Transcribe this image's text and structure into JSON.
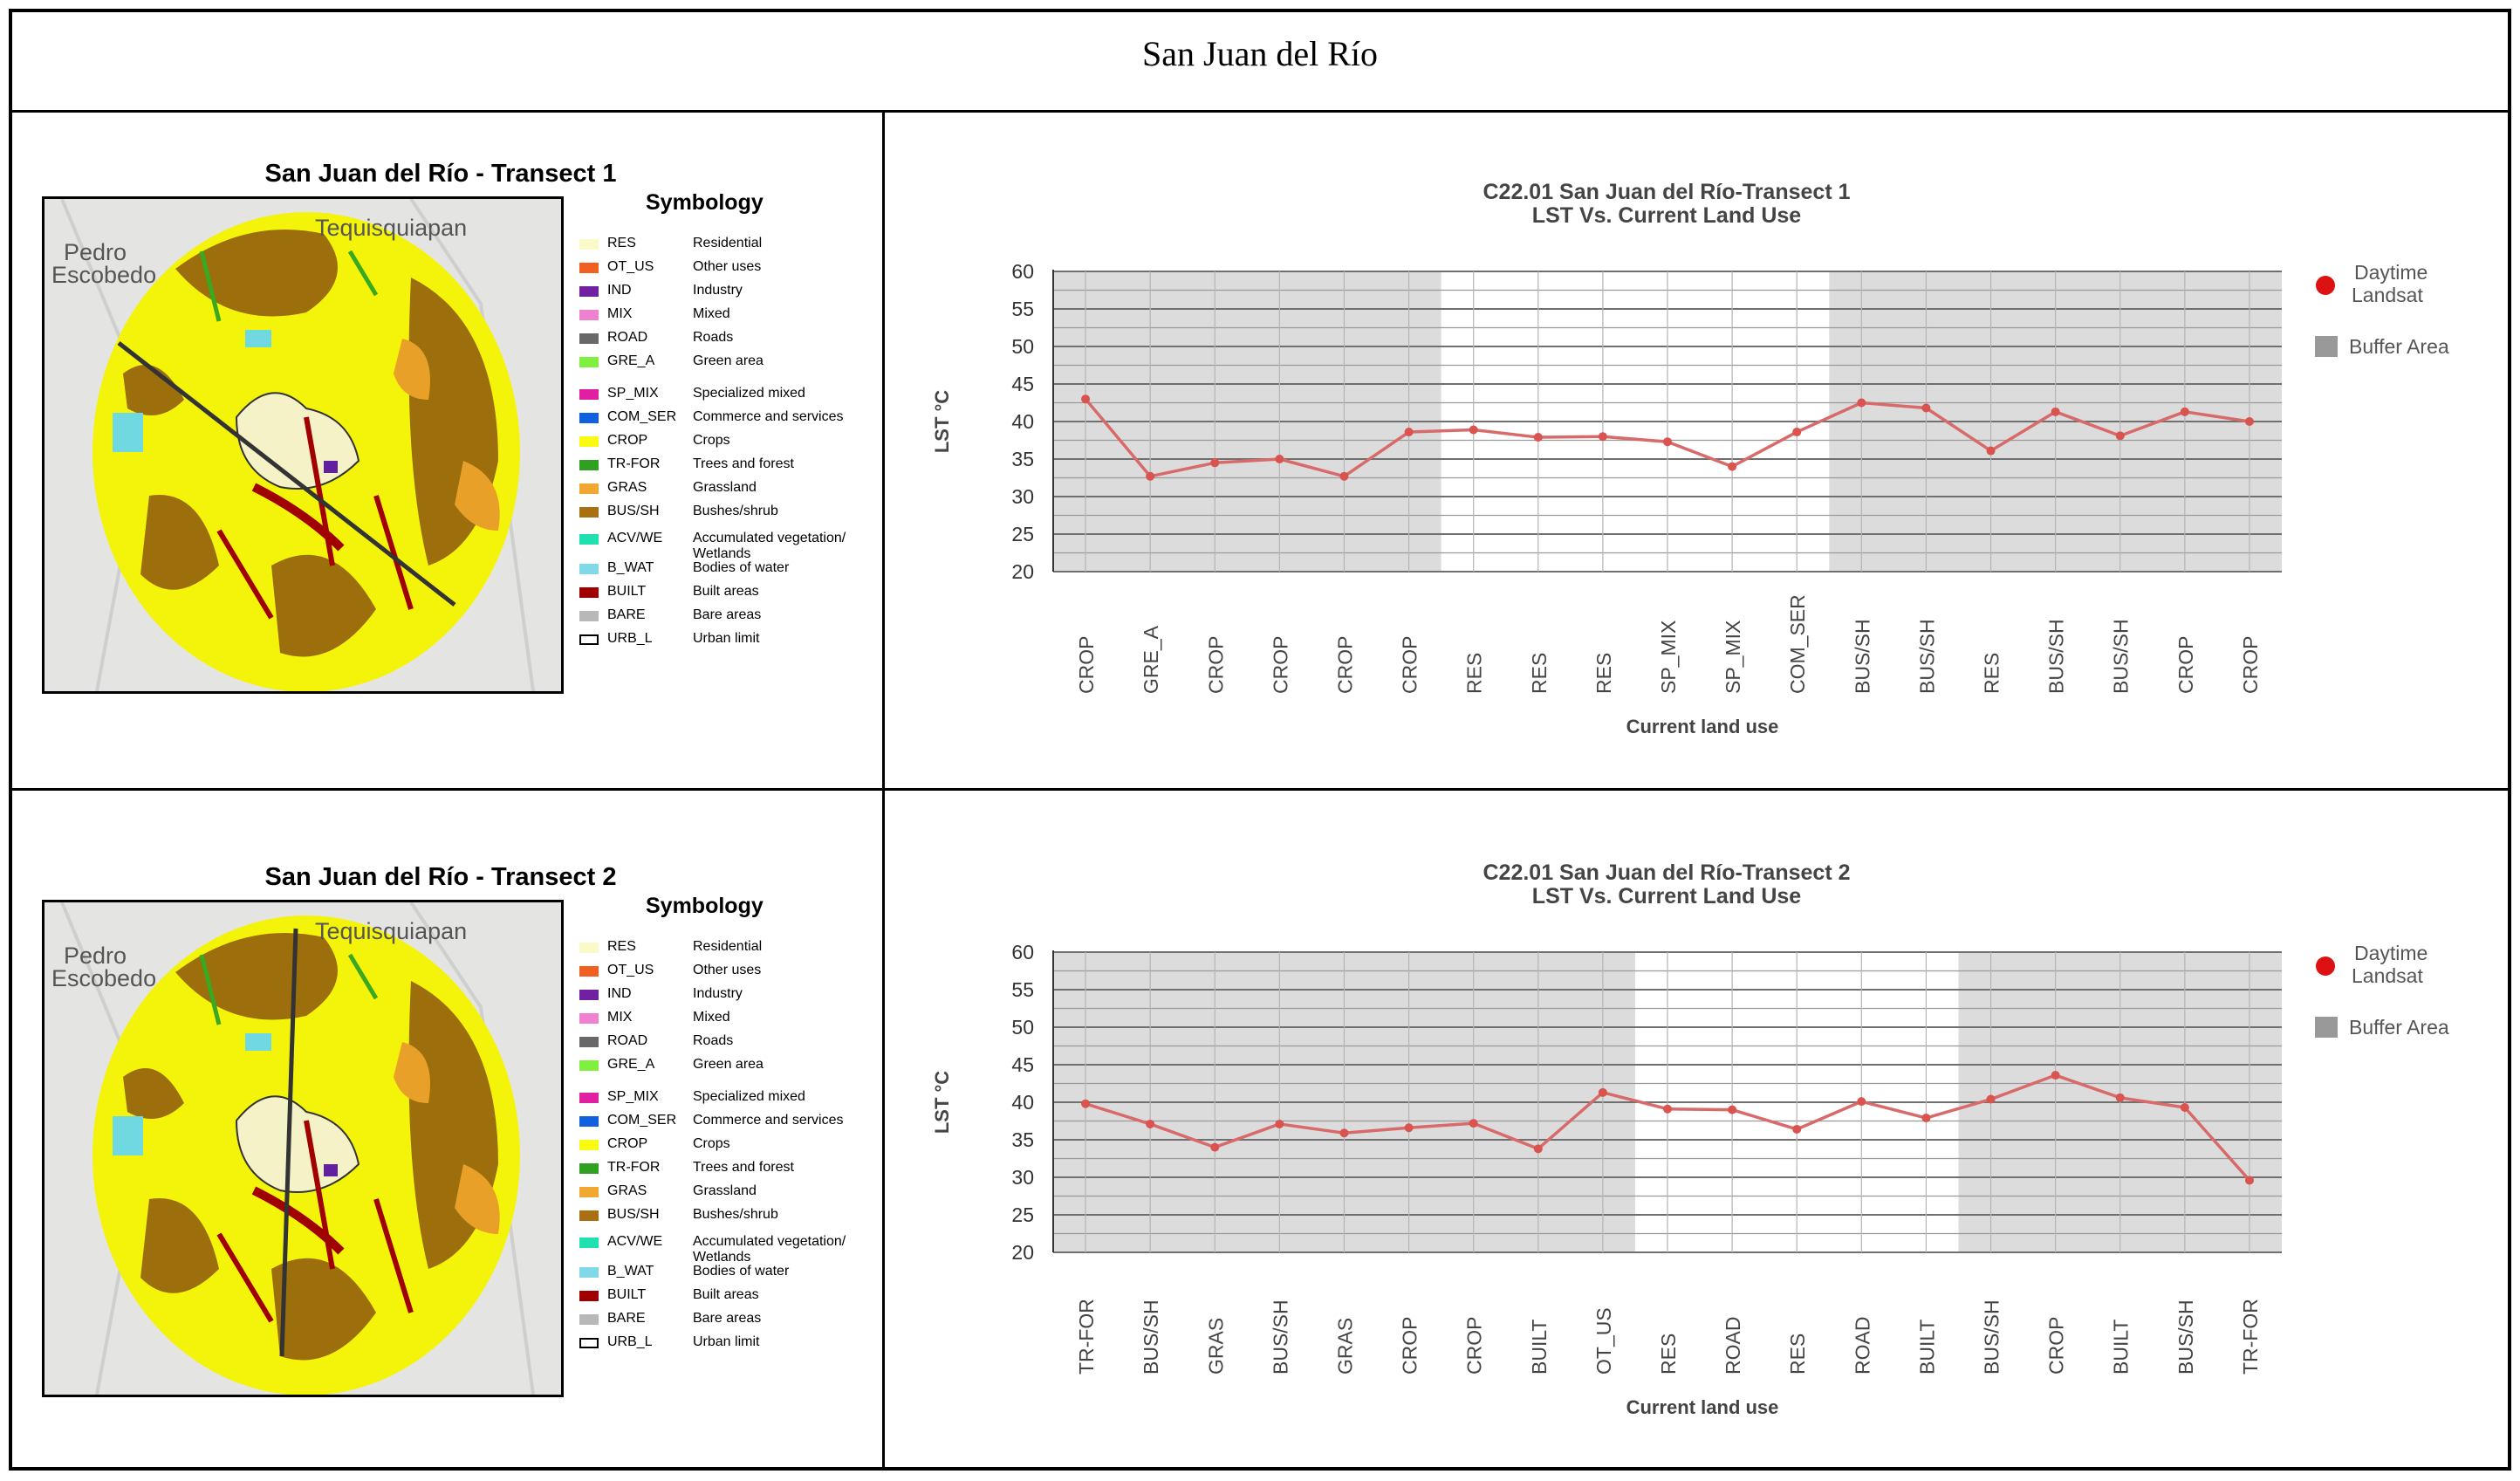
{
  "page_title": "San Juan del Río",
  "colors": {
    "line": "#d86a6a",
    "point": "#d9534f",
    "buffer": "#dcdcdc",
    "grid": "#7a7a7a",
    "daytime": "#dd1111",
    "buffer_legend": "#999999"
  },
  "legend": {
    "title": "Symbology",
    "items": [
      {
        "code": "RES",
        "desc": "Residential",
        "color": "#fafac8",
        "border": ""
      },
      {
        "code": "OT_US",
        "desc": "Other uses",
        "color": "#f06020",
        "border": ""
      },
      {
        "code": "IND",
        "desc": "Industry",
        "color": "#7020a0",
        "border": ""
      },
      {
        "code": "MIX",
        "desc": "Mixed",
        "color": "#f080d0",
        "border": ""
      },
      {
        "code": "ROAD",
        "desc": "Roads",
        "color": "#686868",
        "border": ""
      },
      {
        "code": "GRE_A",
        "desc": "Green area",
        "color": "#80f040",
        "border": ""
      },
      {
        "code": "SP_MIX",
        "desc": "Specialized mixed",
        "color": "#e020a0",
        "border": ""
      },
      {
        "code": "COM_SER",
        "desc": "Commerce and services",
        "color": "#1060e0",
        "border": ""
      },
      {
        "code": "CROP",
        "desc": "Crops",
        "color": "#fafa10",
        "border": ""
      },
      {
        "code": "TR-FOR",
        "desc": "Trees and forest",
        "color": "#30a020",
        "border": ""
      },
      {
        "code": "GRAS",
        "desc": "Grassland",
        "color": "#f0a830",
        "border": ""
      },
      {
        "code": "BUS/SH",
        "desc": "Bushes/shrub",
        "color": "#a87010",
        "border": ""
      },
      {
        "code": "ACV/WE",
        "desc": "Accumulated vegetation/ Wetlands",
        "color": "#20e0b0",
        "border": ""
      },
      {
        "code": "B_WAT",
        "desc": "Bodies of water",
        "color": "#80d8e8",
        "border": ""
      },
      {
        "code": "BUILT",
        "desc": "Built areas",
        "color": "#a00000",
        "border": ""
      },
      {
        "code": "BARE",
        "desc": "Bare areas",
        "color": "#b8b8b8",
        "border": ""
      },
      {
        "code": "URB_L",
        "desc": "Urban limit",
        "color": "#ffffff",
        "border": "#000000"
      }
    ]
  },
  "maps": [
    {
      "title": "San Juan del Río - Transect 1",
      "place_labels": [
        "Pedro",
        "Escobedo",
        "Tequisquiapan"
      ]
    },
    {
      "title": "San Juan del Río - Transect 2",
      "place_labels": [
        "Pedro",
        "Escobedo",
        "Tequisquiapan"
      ]
    }
  ],
  "chart_data": [
    {
      "type": "line",
      "title": "C22.01 San Juan del Río-Transect 1",
      "subtitle": "LST Vs. Current Land Use",
      "xlabel": "Current land use",
      "ylabel": "LST  °C",
      "ylim": [
        20,
        60
      ],
      "yticks": [
        20,
        25,
        30,
        35,
        40,
        45,
        50,
        55,
        60
      ],
      "categories": [
        "CROP",
        "GRE_A",
        "CROP",
        "CROP",
        "CROP",
        "CROP",
        "RES",
        "RES",
        "RES",
        "SP_MIX",
        "SP_MIX",
        "COM_SER",
        "BUS/SH",
        "BUS/SH",
        "RES",
        "BUS/SH",
        "BUS/SH",
        "CROP",
        "CROP"
      ],
      "series": [
        {
          "name": "Daytime Landsat",
          "values": [
            43.0,
            32.7,
            34.5,
            35.0,
            32.7,
            38.6,
            38.9,
            37.9,
            38.0,
            37.3,
            34.0,
            38.6,
            42.5,
            41.8,
            36.1,
            41.3,
            38.1,
            41.3,
            40.0
          ]
        }
      ],
      "buffer_ranges": [
        [
          0,
          5
        ],
        [
          12,
          18
        ]
      ],
      "legend": [
        "Daytime Landsat",
        "Buffer Area"
      ]
    },
    {
      "type": "line",
      "title": "C22.01 San Juan del Río-Transect 2",
      "subtitle": "LST Vs. Current Land Use",
      "xlabel": "Current land use",
      "ylabel": "LST  °C",
      "ylim": [
        20,
        60
      ],
      "yticks": [
        20,
        25,
        30,
        35,
        40,
        45,
        50,
        55,
        60
      ],
      "categories": [
        "TR-FOR",
        "BUS/SH",
        "GRAS",
        "BUS/SH",
        "GRAS",
        "CROP",
        "CROP",
        "BUILT",
        "OT_US",
        "RES",
        "ROAD",
        "RES",
        "ROAD",
        "BUILT",
        "BUS/SH",
        "CROP",
        "BUILT",
        "BUS/SH",
        "TR-FOR"
      ],
      "series": [
        {
          "name": "Daytime Landsat",
          "values": [
            39.8,
            37.1,
            34.0,
            37.1,
            35.9,
            36.6,
            37.2,
            33.8,
            41.3,
            39.1,
            39.0,
            36.4,
            40.1,
            37.9,
            40.4,
            43.6,
            40.6,
            39.3,
            29.6
          ]
        }
      ],
      "buffer_ranges": [
        [
          0,
          8
        ],
        [
          14,
          18
        ]
      ],
      "legend": [
        "Daytime Landsat",
        "Buffer Area"
      ]
    }
  ]
}
